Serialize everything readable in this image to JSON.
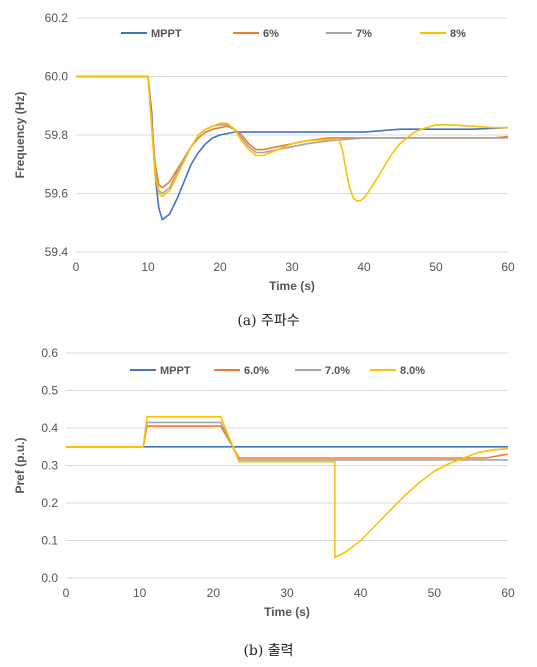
{
  "chart_data": [
    {
      "type": "line",
      "xlabel": "Time (s)",
      "ylabel": "Frequency (Hz)",
      "xlim": [
        0,
        60
      ],
      "ylim": [
        59.4,
        60.2
      ],
      "x_ticks": [
        "0",
        "10",
        "20",
        "30",
        "40",
        "50",
        "60"
      ],
      "y_ticks": [
        "59.4",
        "59.6",
        "59.8",
        "60.0",
        "60.2"
      ],
      "grid": "horizontal",
      "legend_position": "top",
      "caption": "(a) 주파수",
      "series": [
        {
          "name": "MPPT",
          "color": "#4472C4",
          "points": [
            [
              0,
              60.0
            ],
            [
              10,
              60.0
            ],
            [
              10.5,
              59.88
            ],
            [
              11,
              59.66
            ],
            [
              11.5,
              59.55
            ],
            [
              12,
              59.51
            ],
            [
              13,
              59.53
            ],
            [
              14,
              59.58
            ],
            [
              15,
              59.64
            ],
            [
              16,
              59.7
            ],
            [
              17,
              59.74
            ],
            [
              18,
              59.77
            ],
            [
              19,
              59.79
            ],
            [
              20,
              59.8
            ],
            [
              22,
              59.81
            ],
            [
              25,
              59.81
            ],
            [
              30,
              59.81
            ],
            [
              35,
              59.81
            ],
            [
              40,
              59.81
            ],
            [
              45,
              59.82
            ],
            [
              50,
              59.82
            ],
            [
              55,
              59.82
            ],
            [
              60,
              59.825
            ]
          ]
        },
        {
          "name": "6%",
          "color": "#ED7D31",
          "points": [
            [
              0,
              60.0
            ],
            [
              10,
              60.0
            ],
            [
              10.5,
              59.85
            ],
            [
              11,
              59.7
            ],
            [
              11.5,
              59.63
            ],
            [
              12,
              59.62
            ],
            [
              13,
              59.64
            ],
            [
              14,
              59.68
            ],
            [
              15,
              59.72
            ],
            [
              16,
              59.76
            ],
            [
              17,
              59.79
            ],
            [
              18,
              59.81
            ],
            [
              19,
              59.82
            ],
            [
              20,
              59.825
            ],
            [
              21,
              59.83
            ],
            [
              22,
              59.82
            ],
            [
              23,
              59.8
            ],
            [
              24,
              59.77
            ],
            [
              25,
              59.75
            ],
            [
              26,
              59.75
            ],
            [
              28,
              59.76
            ],
            [
              30,
              59.77
            ],
            [
              32,
              59.78
            ],
            [
              35,
              59.79
            ],
            [
              40,
              59.79
            ],
            [
              45,
              59.79
            ],
            [
              50,
              59.79
            ],
            [
              55,
              59.79
            ],
            [
              58,
              59.79
            ],
            [
              60,
              59.795
            ]
          ]
        },
        {
          "name": "7%",
          "color": "#A5A5A5",
          "points": [
            [
              0,
              60.0
            ],
            [
              10,
              60.0
            ],
            [
              10.5,
              59.84
            ],
            [
              11,
              59.68
            ],
            [
              11.5,
              59.61
            ],
            [
              12,
              59.6
            ],
            [
              13,
              59.62
            ],
            [
              14,
              59.67
            ],
            [
              15,
              59.72
            ],
            [
              16,
              59.76
            ],
            [
              17,
              59.8
            ],
            [
              18,
              59.82
            ],
            [
              19,
              59.83
            ],
            [
              20,
              59.835
            ],
            [
              21,
              59.835
            ],
            [
              22,
              59.82
            ],
            [
              23,
              59.79
            ],
            [
              24,
              59.76
            ],
            [
              25,
              59.74
            ],
            [
              26,
              59.74
            ],
            [
              28,
              59.75
            ],
            [
              30,
              59.76
            ],
            [
              32,
              59.77
            ],
            [
              35,
              59.78
            ],
            [
              40,
              59.79
            ],
            [
              45,
              59.79
            ],
            [
              50,
              59.79
            ],
            [
              55,
              59.79
            ],
            [
              60,
              59.79
            ]
          ]
        },
        {
          "name": "8%",
          "color": "#FFC000",
          "points": [
            [
              0,
              60.0
            ],
            [
              10,
              60.0
            ],
            [
              10.5,
              59.83
            ],
            [
              11,
              59.66
            ],
            [
              11.5,
              59.6
            ],
            [
              12,
              59.59
            ],
            [
              13,
              59.61
            ],
            [
              14,
              59.66
            ],
            [
              15,
              59.71
            ],
            [
              16,
              59.76
            ],
            [
              17,
              59.8
            ],
            [
              18,
              59.82
            ],
            [
              19,
              59.83
            ],
            [
              20,
              59.84
            ],
            [
              21,
              59.84
            ],
            [
              22,
              59.82
            ],
            [
              23,
              59.78
            ],
            [
              24,
              59.75
            ],
            [
              25,
              59.73
            ],
            [
              26,
              59.73
            ],
            [
              28,
              59.75
            ],
            [
              30,
              59.77
            ],
            [
              32,
              59.78
            ],
            [
              35,
              59.785
            ],
            [
              36.5,
              59.785
            ],
            [
              37,
              59.75
            ],
            [
              37.5,
              59.68
            ],
            [
              38,
              59.62
            ],
            [
              38.5,
              59.585
            ],
            [
              39,
              59.575
            ],
            [
              39.5,
              59.575
            ],
            [
              40,
              59.585
            ],
            [
              41,
              59.62
            ],
            [
              42,
              59.66
            ],
            [
              43,
              59.7
            ],
            [
              44,
              59.74
            ],
            [
              45,
              59.77
            ],
            [
              46,
              59.79
            ],
            [
              47,
              59.81
            ],
            [
              48,
              59.82
            ],
            [
              50,
              59.835
            ],
            [
              52,
              59.835
            ],
            [
              55,
              59.83
            ],
            [
              58,
              59.825
            ],
            [
              60,
              59.825
            ]
          ]
        }
      ]
    },
    {
      "type": "line",
      "xlabel": "Time (s)",
      "ylabel": "Pref (p.u.)",
      "xlim": [
        0,
        60
      ],
      "ylim": [
        0.0,
        0.6
      ],
      "x_ticks": [
        "0",
        "10",
        "20",
        "30",
        "40",
        "50",
        "60"
      ],
      "y_ticks": [
        "0.0",
        "0.1",
        "0.2",
        "0.3",
        "0.4",
        "0.5",
        "0.6"
      ],
      "grid": "horizontal",
      "legend_position": "top",
      "caption": "(b) 출력",
      "series": [
        {
          "name": "MPPT",
          "color": "#4472C4",
          "points": [
            [
              0,
              0.35
            ],
            [
              60,
              0.35
            ]
          ]
        },
        {
          "name": "6.0%",
          "color": "#ED7D31",
          "points": [
            [
              0,
              0.35
            ],
            [
              10.5,
              0.35
            ],
            [
              11,
              0.405
            ],
            [
              21,
              0.405
            ],
            [
              23.5,
              0.32
            ],
            [
              57,
              0.32
            ],
            [
              60,
              0.33
            ]
          ]
        },
        {
          "name": "7.0%",
          "color": "#A5A5A5",
          "points": [
            [
              0,
              0.35
            ],
            [
              10.5,
              0.35
            ],
            [
              11,
              0.415
            ],
            [
              21,
              0.415
            ],
            [
              23.5,
              0.315
            ],
            [
              60,
              0.315
            ]
          ]
        },
        {
          "name": "8.0%",
          "color": "#FFC000",
          "points": [
            [
              0,
              0.35
            ],
            [
              10.5,
              0.35
            ],
            [
              11,
              0.43
            ],
            [
              21,
              0.43
            ],
            [
              23.5,
              0.31
            ],
            [
              36.5,
              0.31
            ],
            [
              36.5,
              0.055
            ],
            [
              38,
              0.07
            ],
            [
              40,
              0.1
            ],
            [
              42,
              0.14
            ],
            [
              44,
              0.18
            ],
            [
              46,
              0.22
            ],
            [
              48,
              0.255
            ],
            [
              50,
              0.285
            ],
            [
              52,
              0.305
            ],
            [
              54,
              0.32
            ],
            [
              56,
              0.335
            ],
            [
              58,
              0.342
            ],
            [
              60,
              0.345
            ]
          ]
        }
      ]
    }
  ]
}
